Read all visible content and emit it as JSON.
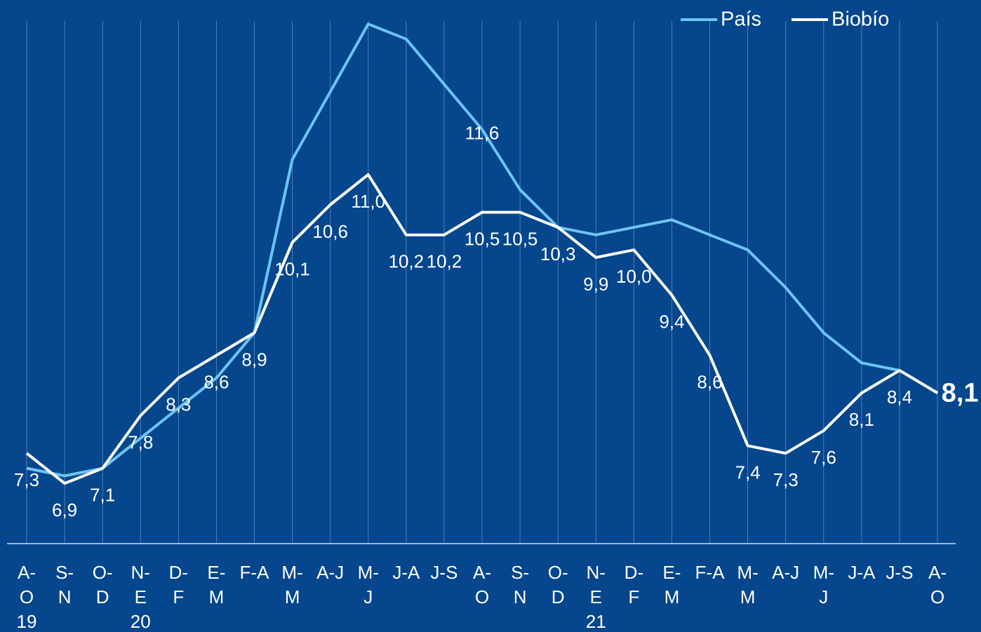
{
  "chart_data": {
    "type": "line",
    "categories": [
      [
        "A-",
        "O",
        "19"
      ],
      [
        "S-",
        "N"
      ],
      [
        "O-",
        "D"
      ],
      [
        "N-",
        "E",
        "20"
      ],
      [
        "D-",
        "F"
      ],
      [
        "E-",
        "M"
      ],
      [
        "F-A"
      ],
      [
        "M-",
        "M"
      ],
      [
        "A-J"
      ],
      [
        "M-",
        "J"
      ],
      [
        "J-A"
      ],
      [
        "J-S"
      ],
      [
        "A-",
        "O"
      ],
      [
        "S-",
        "N"
      ],
      [
        "O-",
        "D"
      ],
      [
        "N-",
        "E",
        "21"
      ],
      [
        "D-",
        "F"
      ],
      [
        "E-",
        "M"
      ],
      [
        "F-A"
      ],
      [
        "M-",
        "M"
      ],
      [
        "A-J"
      ],
      [
        "M-",
        "J"
      ],
      [
        "J-A"
      ],
      [
        "J-S"
      ],
      [
        "A-",
        "O"
      ]
    ],
    "series": [
      {
        "name": "País",
        "color": "#6cc4f4",
        "values": [
          7.1,
          7.0,
          7.1,
          7.5,
          7.9,
          8.3,
          8.9,
          11.2,
          12.1,
          13.0,
          12.8,
          12.2,
          11.6,
          10.8,
          10.3,
          10.2,
          10.3,
          10.4,
          10.2,
          10.0,
          9.5,
          8.9,
          8.5,
          8.4,
          8.1
        ],
        "value_labels": [
          null,
          null,
          null,
          null,
          null,
          null,
          null,
          null,
          null,
          null,
          null,
          null,
          "11,6",
          null,
          null,
          null,
          null,
          null,
          null,
          null,
          null,
          null,
          null,
          null,
          null
        ]
      },
      {
        "name": "Biobío",
        "color": "#ffffff",
        "values": [
          7.3,
          6.9,
          7.1,
          7.8,
          8.3,
          8.6,
          8.9,
          10.1,
          10.6,
          11.0,
          10.2,
          10.2,
          10.5,
          10.5,
          10.3,
          9.9,
          10.0,
          9.4,
          8.6,
          7.4,
          7.3,
          7.6,
          8.1,
          8.4,
          8.1
        ],
        "value_labels": [
          "7,3",
          "6,9",
          "7,1",
          "7,8",
          "8,3",
          "8,6",
          "8,9",
          "10,1",
          "10,6",
          "11,0",
          "10,2",
          "10,2",
          "10,5",
          "10,5",
          "10,3",
          "9,9",
          "10,0",
          "9,4",
          "8,6",
          "7,4",
          "7,3",
          "7,6",
          "8,1",
          "8,4",
          "8,1"
        ]
      }
    ],
    "ylim": [
      6.1,
      13.3
    ],
    "legend": "top-right"
  }
}
